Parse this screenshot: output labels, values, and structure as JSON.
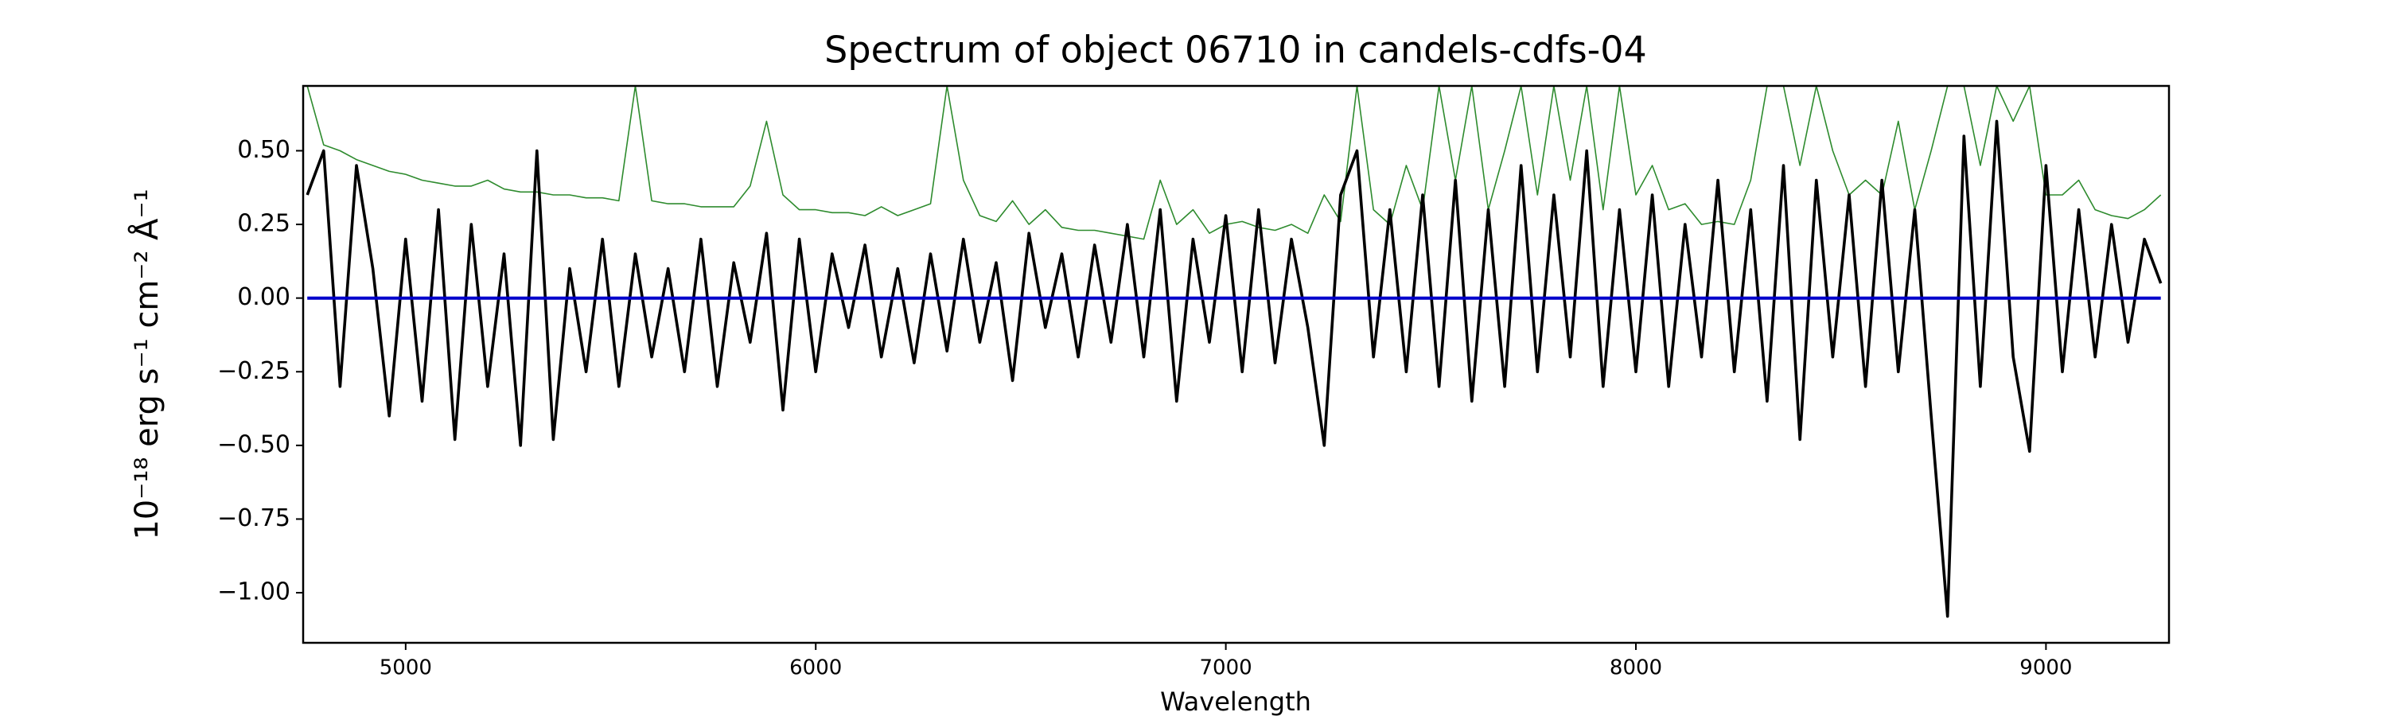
{
  "chart_data": {
    "type": "line",
    "title": "Spectrum of object 06710 in candels-cdfs-04",
    "x_label": "Wavelength",
    "y_label": "10⁻¹⁸ erg s⁻¹ cm⁻² Å⁻¹",
    "xlim": [
      4750,
      9300
    ],
    "ylim": [
      -1.17,
      0.72
    ],
    "xticks": [
      5000,
      6000,
      7000,
      8000,
      9000
    ],
    "yticks": [
      {
        "value": 0.5,
        "label": "0.50"
      },
      {
        "value": 0.25,
        "label": "0.25"
      },
      {
        "value": 0,
        "label": "0.00"
      },
      {
        "value": -0.25,
        "label": "−0.25"
      },
      {
        "value": -0.5,
        "label": "−0.50"
      },
      {
        "value": -0.75,
        "label": "−0.75"
      },
      {
        "value": -1,
        "label": "−1.00"
      }
    ],
    "x": [
      4760,
      4800,
      4840,
      4880,
      4920,
      4960,
      5000,
      5040,
      5080,
      5120,
      5160,
      5200,
      5240,
      5280,
      5320,
      5360,
      5400,
      5440,
      5480,
      5520,
      5560,
      5600,
      5640,
      5680,
      5720,
      5760,
      5800,
      5840,
      5880,
      5920,
      5960,
      6000,
      6040,
      6080,
      6120,
      6160,
      6200,
      6240,
      6280,
      6320,
      6360,
      6400,
      6440,
      6480,
      6520,
      6560,
      6600,
      6640,
      6680,
      6720,
      6760,
      6800,
      6840,
      6880,
      6920,
      6960,
      7000,
      7040,
      7080,
      7120,
      7160,
      7200,
      7240,
      7280,
      7320,
      7360,
      7400,
      7440,
      7480,
      7520,
      7560,
      7600,
      7640,
      7680,
      7720,
      7760,
      7800,
      7840,
      7880,
      7920,
      7960,
      8000,
      8040,
      8080,
      8120,
      8160,
      8200,
      8240,
      8280,
      8320,
      8360,
      8400,
      8440,
      8480,
      8520,
      8560,
      8600,
      8640,
      8680,
      8720,
      8760,
      8800,
      8840,
      8880,
      8920,
      8960,
      9000,
      9040,
      9080,
      9120,
      9160,
      9200,
      9240,
      9280
    ],
    "series": [
      {
        "color": "#2e8b2e",
        "width": 1.6,
        "values": [
          0.72,
          0.52,
          0.5,
          0.47,
          0.45,
          0.43,
          0.42,
          0.4,
          0.39,
          0.38,
          0.38,
          0.4,
          0.37,
          0.36,
          0.36,
          0.35,
          0.35,
          0.34,
          0.34,
          0.33,
          0.72,
          0.33,
          0.32,
          0.32,
          0.31,
          0.31,
          0.31,
          0.38,
          0.6,
          0.35,
          0.3,
          0.3,
          0.29,
          0.29,
          0.28,
          0.31,
          0.28,
          0.3,
          0.32,
          0.72,
          0.4,
          0.28,
          0.26,
          0.33,
          0.25,
          0.3,
          0.24,
          0.23,
          0.23,
          0.22,
          0.21,
          0.2,
          0.4,
          0.25,
          0.3,
          0.22,
          0.25,
          0.26,
          0.24,
          0.23,
          0.25,
          0.22,
          0.35,
          0.26,
          0.72,
          0.3,
          0.25,
          0.45,
          0.3,
          0.72,
          0.4,
          0.72,
          0.3,
          0.5,
          0.72,
          0.35,
          0.72,
          0.4,
          0.72,
          0.3,
          0.72,
          0.35,
          0.45,
          0.3,
          0.32,
          0.25,
          0.26,
          0.25,
          0.4,
          0.72,
          0.72,
          0.45,
          0.72,
          0.5,
          0.35,
          0.4,
          0.35,
          0.6,
          0.3,
          0.5,
          0.72,
          0.72,
          0.45,
          0.72,
          0.6,
          0.72,
          0.35,
          0.35,
          0.4,
          0.3,
          0.28,
          0.27,
          0.3,
          0.35
        ]
      },
      {
        "color": "#000000",
        "width": 3.6,
        "values": [
          0.35,
          0.5,
          -0.3,
          0.45,
          0.1,
          -0.4,
          0.2,
          -0.35,
          0.3,
          -0.48,
          0.25,
          -0.3,
          0.15,
          -0.5,
          0.5,
          -0.48,
          0.1,
          -0.25,
          0.2,
          -0.3,
          0.15,
          -0.2,
          0.1,
          -0.25,
          0.2,
          -0.3,
          0.12,
          -0.15,
          0.22,
          -0.38,
          0.2,
          -0.25,
          0.15,
          -0.1,
          0.18,
          -0.2,
          0.1,
          -0.22,
          0.15,
          -0.18,
          0.2,
          -0.15,
          0.12,
          -0.28,
          0.22,
          -0.1,
          0.15,
          -0.2,
          0.18,
          -0.15,
          0.25,
          -0.2,
          0.3,
          -0.35,
          0.2,
          -0.15,
          0.28,
          -0.25,
          0.3,
          -0.22,
          0.2,
          -0.1,
          -0.5,
          0.35,
          0.5,
          -0.2,
          0.3,
          -0.25,
          0.35,
          -0.3,
          0.4,
          -0.35,
          0.3,
          -0.3,
          0.45,
          -0.25,
          0.35,
          -0.2,
          0.5,
          -0.3,
          0.3,
          -0.25,
          0.35,
          -0.3,
          0.25,
          -0.2,
          0.4,
          -0.25,
          0.3,
          -0.35,
          0.45,
          -0.48,
          0.4,
          -0.2,
          0.35,
          -0.3,
          0.4,
          -0.25,
          0.3,
          -0.4,
          -1.08,
          0.55,
          -0.3,
          0.6,
          -0.2,
          -0.52,
          0.45,
          -0.25,
          0.3,
          -0.2,
          0.25,
          -0.15,
          0.2,
          0.05
        ]
      },
      {
        "color": "#0000cc",
        "width": 4,
        "values": [
          0,
          0,
          0,
          0,
          0,
          0,
          0,
          0,
          0,
          0,
          0,
          0,
          0,
          0,
          0,
          0,
          0,
          0,
          0,
          0,
          0,
          0,
          0,
          0,
          0,
          0,
          0,
          0,
          0,
          0,
          0,
          0,
          0,
          0,
          0,
          0,
          0,
          0,
          0,
          0,
          0,
          0,
          0,
          0,
          0,
          0,
          0,
          0,
          0,
          0,
          0,
          0,
          0,
          0,
          0,
          0,
          0,
          0,
          0,
          0,
          0,
          0,
          0,
          0,
          0,
          0,
          0,
          0,
          0,
          0,
          0,
          0,
          0,
          0,
          0,
          0,
          0,
          0,
          0,
          0,
          0,
          0,
          0,
          0,
          0,
          0,
          0,
          0,
          0,
          0,
          0,
          0,
          0,
          0,
          0,
          0,
          0,
          0,
          0,
          0,
          0,
          0,
          0,
          0,
          0,
          0,
          0,
          0,
          0,
          0,
          0,
          0,
          0,
          0
        ]
      }
    ]
  }
}
